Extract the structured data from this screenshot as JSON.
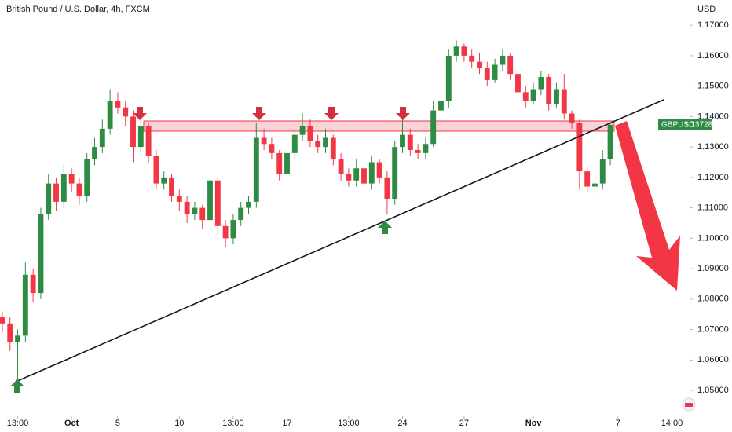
{
  "chart_data": {
    "type": "candlestick",
    "title": "British Pound / U.S. Dollar, 4h, FXCM",
    "y_axis_label": "USD",
    "symbol": "GBPUSD",
    "last_label": "1.13728",
    "up_color": "#2e8b44",
    "down_color": "#f23645",
    "xlim": [
      -0.3,
      89.3
    ],
    "ylim": [
      1.0415,
      1.1783
    ],
    "xticks": [
      {
        "value": 2,
        "label": "13:00"
      },
      {
        "value": 9,
        "label": "Oct"
      },
      {
        "value": 15,
        "label": "5"
      },
      {
        "value": 23,
        "label": "10"
      },
      {
        "value": 30,
        "label": "13:00"
      },
      {
        "value": 37,
        "label": "17"
      },
      {
        "value": 45,
        "label": "13:00"
      },
      {
        "value": 52,
        "label": "24"
      },
      {
        "value": 60,
        "label": "27"
      },
      {
        "value": 69,
        "label": "Nov"
      },
      {
        "value": 80,
        "label": "7"
      },
      {
        "value": 87,
        "label": "14:00"
      }
    ],
    "yticks": [
      {
        "value": 1.05,
        "label": "1.05000"
      },
      {
        "value": 1.06,
        "label": "1.06000"
      },
      {
        "value": 1.07,
        "label": "1.07000"
      },
      {
        "value": 1.08,
        "label": "1.08000"
      },
      {
        "value": 1.09,
        "label": "1.09000"
      },
      {
        "value": 1.1,
        "label": "1.10000"
      },
      {
        "value": 1.11,
        "label": "1.11000"
      },
      {
        "value": 1.12,
        "label": "1.12000"
      },
      {
        "value": 1.13,
        "label": "1.13000"
      },
      {
        "value": 1.14,
        "label": "1.14000"
      },
      {
        "value": 1.15,
        "label": "1.15000"
      },
      {
        "value": 1.16,
        "label": "1.16000"
      },
      {
        "value": 1.17,
        "label": "1.17000"
      }
    ],
    "candles": [
      [
        1.074,
        1.076,
        1.069,
        1.072
      ],
      [
        1.072,
        1.074,
        1.063,
        1.066
      ],
      [
        1.066,
        1.07,
        1.053,
        1.068
      ],
      [
        1.068,
        1.092,
        1.066,
        1.088
      ],
      [
        1.088,
        1.09,
        1.079,
        1.082
      ],
      [
        1.082,
        1.11,
        1.08,
        1.108
      ],
      [
        1.108,
        1.121,
        1.106,
        1.118
      ],
      [
        1.118,
        1.12,
        1.109,
        1.112
      ],
      [
        1.112,
        1.124,
        1.11,
        1.121
      ],
      [
        1.121,
        1.123,
        1.115,
        1.118
      ],
      [
        1.118,
        1.12,
        1.111,
        1.114
      ],
      [
        1.114,
        1.128,
        1.112,
        1.126
      ],
      [
        1.126,
        1.133,
        1.124,
        1.13
      ],
      [
        1.13,
        1.139,
        1.128,
        1.136
      ],
      [
        1.136,
        1.149,
        1.134,
        1.145
      ],
      [
        1.145,
        1.148,
        1.141,
        1.143
      ],
      [
        1.143,
        1.145,
        1.137,
        1.14
      ],
      [
        1.14,
        1.142,
        1.125,
        1.13
      ],
      [
        1.13,
        1.139,
        1.128,
        1.137
      ],
      [
        1.137,
        1.138,
        1.125,
        1.127
      ],
      [
        1.127,
        1.129,
        1.116,
        1.118
      ],
      [
        1.118,
        1.122,
        1.116,
        1.12
      ],
      [
        1.12,
        1.121,
        1.112,
        1.114
      ],
      [
        1.114,
        1.116,
        1.109,
        1.112
      ],
      [
        1.112,
        1.114,
        1.105,
        1.108
      ],
      [
        1.108,
        1.112,
        1.106,
        1.11
      ],
      [
        1.11,
        1.111,
        1.103,
        1.106
      ],
      [
        1.106,
        1.121,
        1.104,
        1.119
      ],
      [
        1.119,
        1.12,
        1.101,
        1.104
      ],
      [
        1.104,
        1.106,
        1.097,
        1.1
      ],
      [
        1.1,
        1.108,
        1.098,
        1.106
      ],
      [
        1.106,
        1.112,
        1.104,
        1.11
      ],
      [
        1.11,
        1.114,
        1.108,
        1.112
      ],
      [
        1.112,
        1.138,
        1.11,
        1.133
      ],
      [
        1.133,
        1.136,
        1.129,
        1.131
      ],
      [
        1.131,
        1.133,
        1.126,
        1.128
      ],
      [
        1.128,
        1.129,
        1.119,
        1.121
      ],
      [
        1.121,
        1.13,
        1.12,
        1.128
      ],
      [
        1.128,
        1.136,
        1.126,
        1.134
      ],
      [
        1.134,
        1.141,
        1.132,
        1.137
      ],
      [
        1.137,
        1.139,
        1.13,
        1.132
      ],
      [
        1.132,
        1.134,
        1.128,
        1.13
      ],
      [
        1.13,
        1.136,
        1.128,
        1.133
      ],
      [
        1.133,
        1.134,
        1.124,
        1.126
      ],
      [
        1.126,
        1.128,
        1.119,
        1.121
      ],
      [
        1.121,
        1.123,
        1.117,
        1.119
      ],
      [
        1.119,
        1.126,
        1.117,
        1.123
      ],
      [
        1.123,
        1.124,
        1.116,
        1.118
      ],
      [
        1.118,
        1.127,
        1.116,
        1.125
      ],
      [
        1.125,
        1.126,
        1.118,
        1.12
      ],
      [
        1.12,
        1.122,
        1.108,
        1.113
      ],
      [
        1.113,
        1.132,
        1.111,
        1.13
      ],
      [
        1.13,
        1.14,
        1.128,
        1.134
      ],
      [
        1.134,
        1.136,
        1.127,
        1.129
      ],
      [
        1.129,
        1.131,
        1.126,
        1.128
      ],
      [
        1.128,
        1.133,
        1.126,
        1.131
      ],
      [
        1.131,
        1.145,
        1.13,
        1.142
      ],
      [
        1.142,
        1.147,
        1.14,
        1.145
      ],
      [
        1.145,
        1.162,
        1.143,
        1.16
      ],
      [
        1.16,
        1.165,
        1.158,
        1.163
      ],
      [
        1.163,
        1.164,
        1.158,
        1.16
      ],
      [
        1.16,
        1.162,
        1.156,
        1.158
      ],
      [
        1.158,
        1.161,
        1.154,
        1.156
      ],
      [
        1.156,
        1.158,
        1.15,
        1.152
      ],
      [
        1.152,
        1.159,
        1.151,
        1.157
      ],
      [
        1.157,
        1.162,
        1.155,
        1.16
      ],
      [
        1.16,
        1.161,
        1.152,
        1.154
      ],
      [
        1.154,
        1.156,
        1.146,
        1.148
      ],
      [
        1.148,
        1.15,
        1.143,
        1.145
      ],
      [
        1.145,
        1.151,
        1.144,
        1.149
      ],
      [
        1.149,
        1.155,
        1.147,
        1.153
      ],
      [
        1.153,
        1.154,
        1.142,
        1.144
      ],
      [
        1.144,
        1.151,
        1.143,
        1.149
      ],
      [
        1.149,
        1.154,
        1.139,
        1.141
      ],
      [
        1.141,
        1.142,
        1.136,
        1.138
      ],
      [
        1.138,
        1.139,
        1.116,
        1.122
      ],
      [
        1.122,
        1.124,
        1.115,
        1.117
      ],
      [
        1.117,
        1.122,
        1.114,
        1.118
      ],
      [
        1.118,
        1.129,
        1.116,
        1.126
      ],
      [
        1.126,
        1.138,
        1.124,
        1.13728
      ]
    ]
  }
}
